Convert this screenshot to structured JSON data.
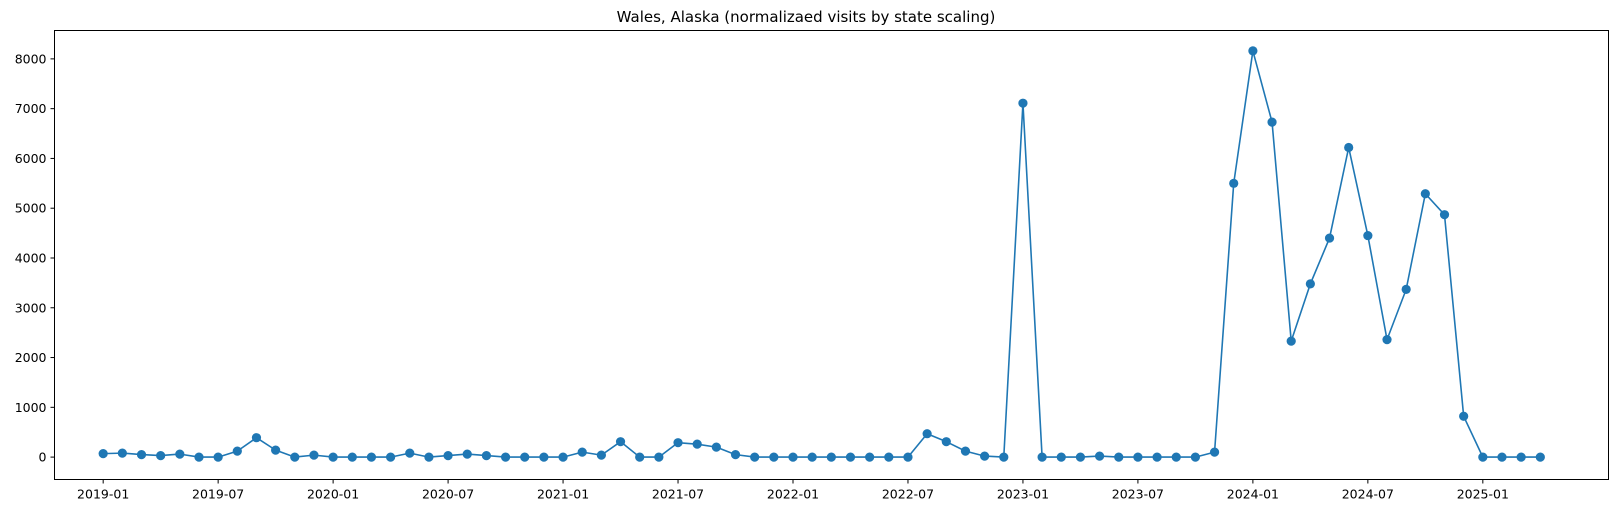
{
  "chart_data": {
    "type": "line",
    "title": "Wales, Alaska (normalizaed visits by state scaling)",
    "xlabel": "",
    "ylabel": "",
    "grid": false,
    "legend": "none",
    "line_color": "#1f77b4",
    "marker": "circle",
    "xlim": [
      "2018-10-15",
      "2025-07-18"
    ],
    "ylim": [
      -450,
      8570
    ],
    "x_ticks": [
      "2019-01",
      "2019-07",
      "2020-01",
      "2020-07",
      "2021-01",
      "2021-07",
      "2022-01",
      "2022-07",
      "2023-01",
      "2023-07",
      "2024-01",
      "2024-07",
      "2025-01"
    ],
    "y_ticks": [
      0,
      1000,
      2000,
      3000,
      4000,
      5000,
      6000,
      7000,
      8000
    ],
    "series": [
      {
        "x": [
          "2019-01",
          "2019-02",
          "2019-03",
          "2019-04",
          "2019-05",
          "2019-06",
          "2019-07",
          "2019-08",
          "2019-09",
          "2019-10",
          "2019-11",
          "2019-12",
          "2020-01",
          "2020-02",
          "2020-03",
          "2020-04",
          "2020-05",
          "2020-06",
          "2020-07",
          "2020-08",
          "2020-09",
          "2020-10",
          "2020-11",
          "2020-12",
          "2021-01",
          "2021-02",
          "2021-03",
          "2021-04",
          "2021-05",
          "2021-06",
          "2021-07",
          "2021-08",
          "2021-09",
          "2021-10",
          "2021-11",
          "2021-12",
          "2022-01",
          "2022-02",
          "2022-03",
          "2022-04",
          "2022-05",
          "2022-06",
          "2022-07",
          "2022-08",
          "2022-09",
          "2022-10",
          "2022-11",
          "2022-12",
          "2023-01",
          "2023-02",
          "2023-03",
          "2023-04",
          "2023-05",
          "2023-06",
          "2023-07",
          "2023-08",
          "2023-09",
          "2023-10",
          "2023-11",
          "2023-12",
          "2024-01",
          "2024-02",
          "2024-03",
          "2024-04",
          "2024-05",
          "2024-06",
          "2024-07",
          "2024-08",
          "2024-09",
          "2024-10",
          "2024-11",
          "2024-12",
          "2025-01",
          "2025-02",
          "2025-03",
          "2025-04"
        ],
        "y": [
          70,
          80,
          50,
          30,
          60,
          0,
          0,
          120,
          390,
          140,
          0,
          40,
          0,
          0,
          0,
          0,
          80,
          0,
          30,
          60,
          30,
          0,
          0,
          0,
          0,
          100,
          40,
          310,
          0,
          0,
          290,
          260,
          200,
          50,
          0,
          0,
          0,
          0,
          0,
          0,
          0,
          0,
          0,
          470,
          310,
          120,
          20,
          0,
          7110,
          0,
          0,
          0,
          20,
          0,
          0,
          0,
          0,
          0,
          100,
          5500,
          8160,
          6730,
          2330,
          3480,
          4400,
          6220,
          4450,
          2360,
          3370,
          5290,
          4870,
          820,
          0,
          0,
          0,
          0
        ]
      }
    ]
  }
}
